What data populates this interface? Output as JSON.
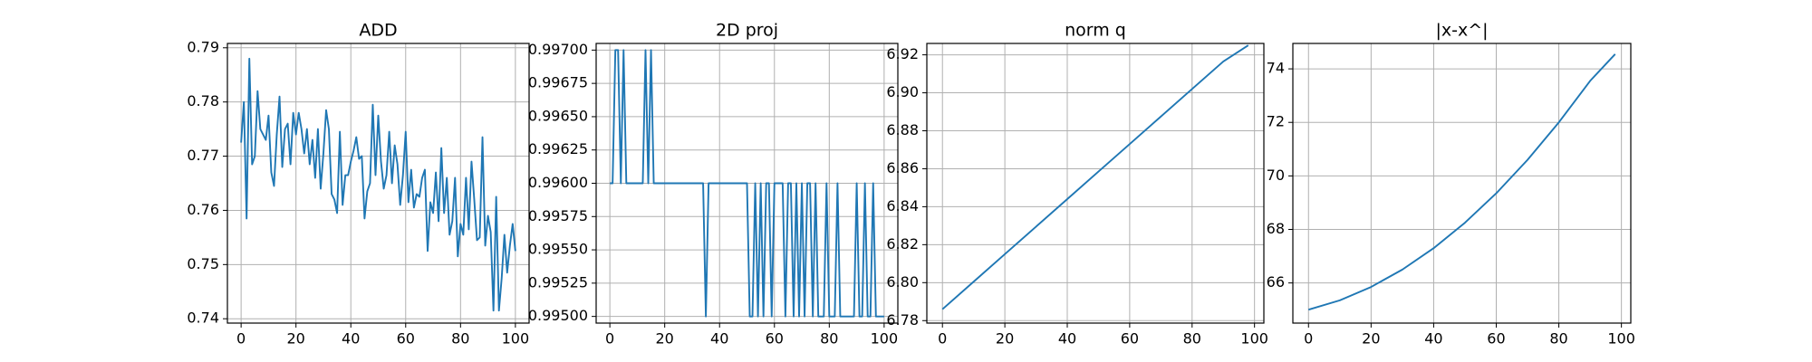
{
  "chart_data": [
    {
      "type": "line",
      "title": "ADD",
      "color": "#1f77b4",
      "grid": true,
      "x": [
        0,
        1,
        2,
        3,
        4,
        5,
        6,
        7,
        8,
        9,
        10,
        11,
        12,
        13,
        14,
        15,
        16,
        17,
        18,
        19,
        20,
        21,
        22,
        23,
        24,
        25,
        26,
        27,
        28,
        29,
        30,
        31,
        32,
        33,
        34,
        35,
        36,
        37,
        38,
        39,
        40,
        41,
        42,
        43,
        44,
        45,
        46,
        47,
        48,
        49,
        50,
        51,
        52,
        53,
        54,
        55,
        56,
        57,
        58,
        59,
        60,
        61,
        62,
        63,
        64,
        65,
        66,
        67,
        68,
        69,
        70,
        71,
        72,
        73,
        74,
        75,
        76,
        77,
        78,
        79,
        80,
        81,
        82,
        83,
        84,
        85,
        86,
        87,
        88,
        89,
        90,
        91,
        92,
        93,
        94,
        95,
        96,
        97,
        98,
        99,
        100
      ],
      "values": [
        0.7725,
        0.78,
        0.7585,
        0.788,
        0.7685,
        0.77,
        0.782,
        0.775,
        0.774,
        0.773,
        0.7775,
        0.767,
        0.7645,
        0.774,
        0.781,
        0.768,
        0.775,
        0.776,
        0.7685,
        0.778,
        0.774,
        0.778,
        0.775,
        0.7705,
        0.775,
        0.7685,
        0.773,
        0.766,
        0.775,
        0.764,
        0.7705,
        0.7785,
        0.775,
        0.763,
        0.762,
        0.7595,
        0.7745,
        0.761,
        0.7665,
        0.7665,
        0.769,
        0.771,
        0.7735,
        0.7695,
        0.77,
        0.7585,
        0.7635,
        0.765,
        0.7795,
        0.7665,
        0.7775,
        0.769,
        0.764,
        0.7665,
        0.7745,
        0.765,
        0.772,
        0.7685,
        0.761,
        0.7665,
        0.7745,
        0.7615,
        0.7675,
        0.7605,
        0.763,
        0.7625,
        0.766,
        0.7675,
        0.7525,
        0.7615,
        0.7595,
        0.767,
        0.758,
        0.7715,
        0.7595,
        0.766,
        0.7555,
        0.758,
        0.766,
        0.7515,
        0.7575,
        0.7555,
        0.766,
        0.7565,
        0.769,
        0.762,
        0.7545,
        0.755,
        0.7735,
        0.7535,
        0.759,
        0.756,
        0.7415,
        0.7625,
        0.7415,
        0.7475,
        0.7555,
        0.7485,
        0.7535,
        0.7575,
        0.7525
      ],
      "xlim": [
        -5,
        105
      ],
      "xticks": [
        0,
        20,
        40,
        60,
        80,
        100
      ],
      "ylim": [
        0.7392,
        0.7908
      ],
      "yticks": [
        0.74,
        0.75,
        0.76,
        0.77,
        0.78,
        0.79
      ]
    },
    {
      "type": "line",
      "title": "2D proj",
      "color": "#1f77b4",
      "grid": true,
      "x": [
        0,
        1,
        2,
        3,
        4,
        5,
        6,
        7,
        8,
        9,
        10,
        11,
        12,
        13,
        14,
        15,
        16,
        17,
        18,
        19,
        20,
        21,
        22,
        23,
        24,
        25,
        26,
        27,
        28,
        29,
        30,
        31,
        32,
        33,
        34,
        35,
        36,
        37,
        38,
        39,
        40,
        41,
        42,
        43,
        44,
        45,
        46,
        47,
        48,
        49,
        50,
        51,
        52,
        53,
        54,
        55,
        56,
        57,
        58,
        59,
        60,
        61,
        62,
        63,
        64,
        65,
        66,
        67,
        68,
        69,
        70,
        71,
        72,
        73,
        74,
        75,
        76,
        77,
        78,
        79,
        80,
        81,
        82,
        83,
        84,
        85,
        86,
        87,
        88,
        89,
        90,
        91,
        92,
        93,
        94,
        95,
        96,
        97,
        98,
        99,
        100
      ],
      "values": [
        0.996,
        0.996,
        0.997,
        0.997,
        0.996,
        0.997,
        0.996,
        0.996,
        0.996,
        0.996,
        0.996,
        0.996,
        0.996,
        0.997,
        0.996,
        0.997,
        0.996,
        0.996,
        0.996,
        0.996,
        0.996,
        0.996,
        0.996,
        0.996,
        0.996,
        0.996,
        0.996,
        0.996,
        0.996,
        0.996,
        0.996,
        0.996,
        0.996,
        0.996,
        0.996,
        0.995,
        0.996,
        0.996,
        0.996,
        0.996,
        0.996,
        0.996,
        0.996,
        0.996,
        0.996,
        0.996,
        0.996,
        0.996,
        0.996,
        0.996,
        0.996,
        0.995,
        0.995,
        0.996,
        0.995,
        0.996,
        0.995,
        0.996,
        0.996,
        0.995,
        0.996,
        0.996,
        0.996,
        0.996,
        0.995,
        0.996,
        0.996,
        0.995,
        0.996,
        0.995,
        0.996,
        0.995,
        0.996,
        0.996,
        0.995,
        0.996,
        0.995,
        0.995,
        0.995,
        0.996,
        0.995,
        0.995,
        0.995,
        0.996,
        0.995,
        0.995,
        0.995,
        0.995,
        0.995,
        0.995,
        0.996,
        0.995,
        0.995,
        0.996,
        0.995,
        0.995,
        0.996,
        0.995,
        0.995,
        0.995,
        0.995
      ],
      "xlim": [
        -5,
        105
      ],
      "xticks": [
        0,
        20,
        40,
        60,
        80,
        100
      ],
      "ylim": [
        0.99495,
        0.99705
      ],
      "yticks": [
        {
          "value": 0.995,
          "label": "0.99500"
        },
        {
          "value": 0.99525,
          "label": "0.99525"
        },
        {
          "value": 0.9955,
          "label": "0.99550"
        },
        {
          "value": 0.99575,
          "label": "0.99575"
        },
        {
          "value": 0.996,
          "label": "0.99600"
        },
        {
          "value": 0.99625,
          "label": "0.99625"
        },
        {
          "value": 0.9965,
          "label": "0.99650"
        },
        {
          "value": 0.99675,
          "label": "0.99675"
        },
        {
          "value": 0.997,
          "label": "0.99700"
        }
      ]
    },
    {
      "type": "line",
      "title": "norm q",
      "color": "#1f77b4",
      "grid": true,
      "x": [
        0,
        10,
        20,
        30,
        40,
        50,
        60,
        70,
        80,
        90,
        98
      ],
      "values": [
        6.786,
        6.8005,
        6.815,
        6.8295,
        6.844,
        6.8585,
        6.873,
        6.8875,
        6.902,
        6.9165,
        6.925
      ],
      "xlim": [
        -5,
        103
      ],
      "xticks": [
        0,
        20,
        40,
        60,
        80,
        100
      ],
      "ylim": [
        6.7787,
        6.926
      ],
      "yticks": [
        6.78,
        {
          "value": 6.8,
          "label": "6.80"
        },
        6.82,
        6.84,
        6.86,
        6.88,
        {
          "value": 6.9,
          "label": "6.90"
        },
        6.92
      ]
    },
    {
      "type": "line",
      "title": "|x-x^|",
      "color": "#1f77b4",
      "grid": true,
      "x": [
        0,
        10,
        20,
        30,
        40,
        50,
        60,
        70,
        80,
        90,
        98
      ],
      "values": [
        65.0,
        65.35,
        65.85,
        66.5,
        67.3,
        68.25,
        69.35,
        70.6,
        72.0,
        73.55,
        74.55
      ],
      "xlim": [
        -5,
        103
      ],
      "xticks": [
        0,
        20,
        40,
        60,
        80,
        100
      ],
      "ylim": [
        64.5,
        74.95
      ],
      "yticks": [
        66,
        68,
        70,
        72,
        74
      ]
    }
  ]
}
